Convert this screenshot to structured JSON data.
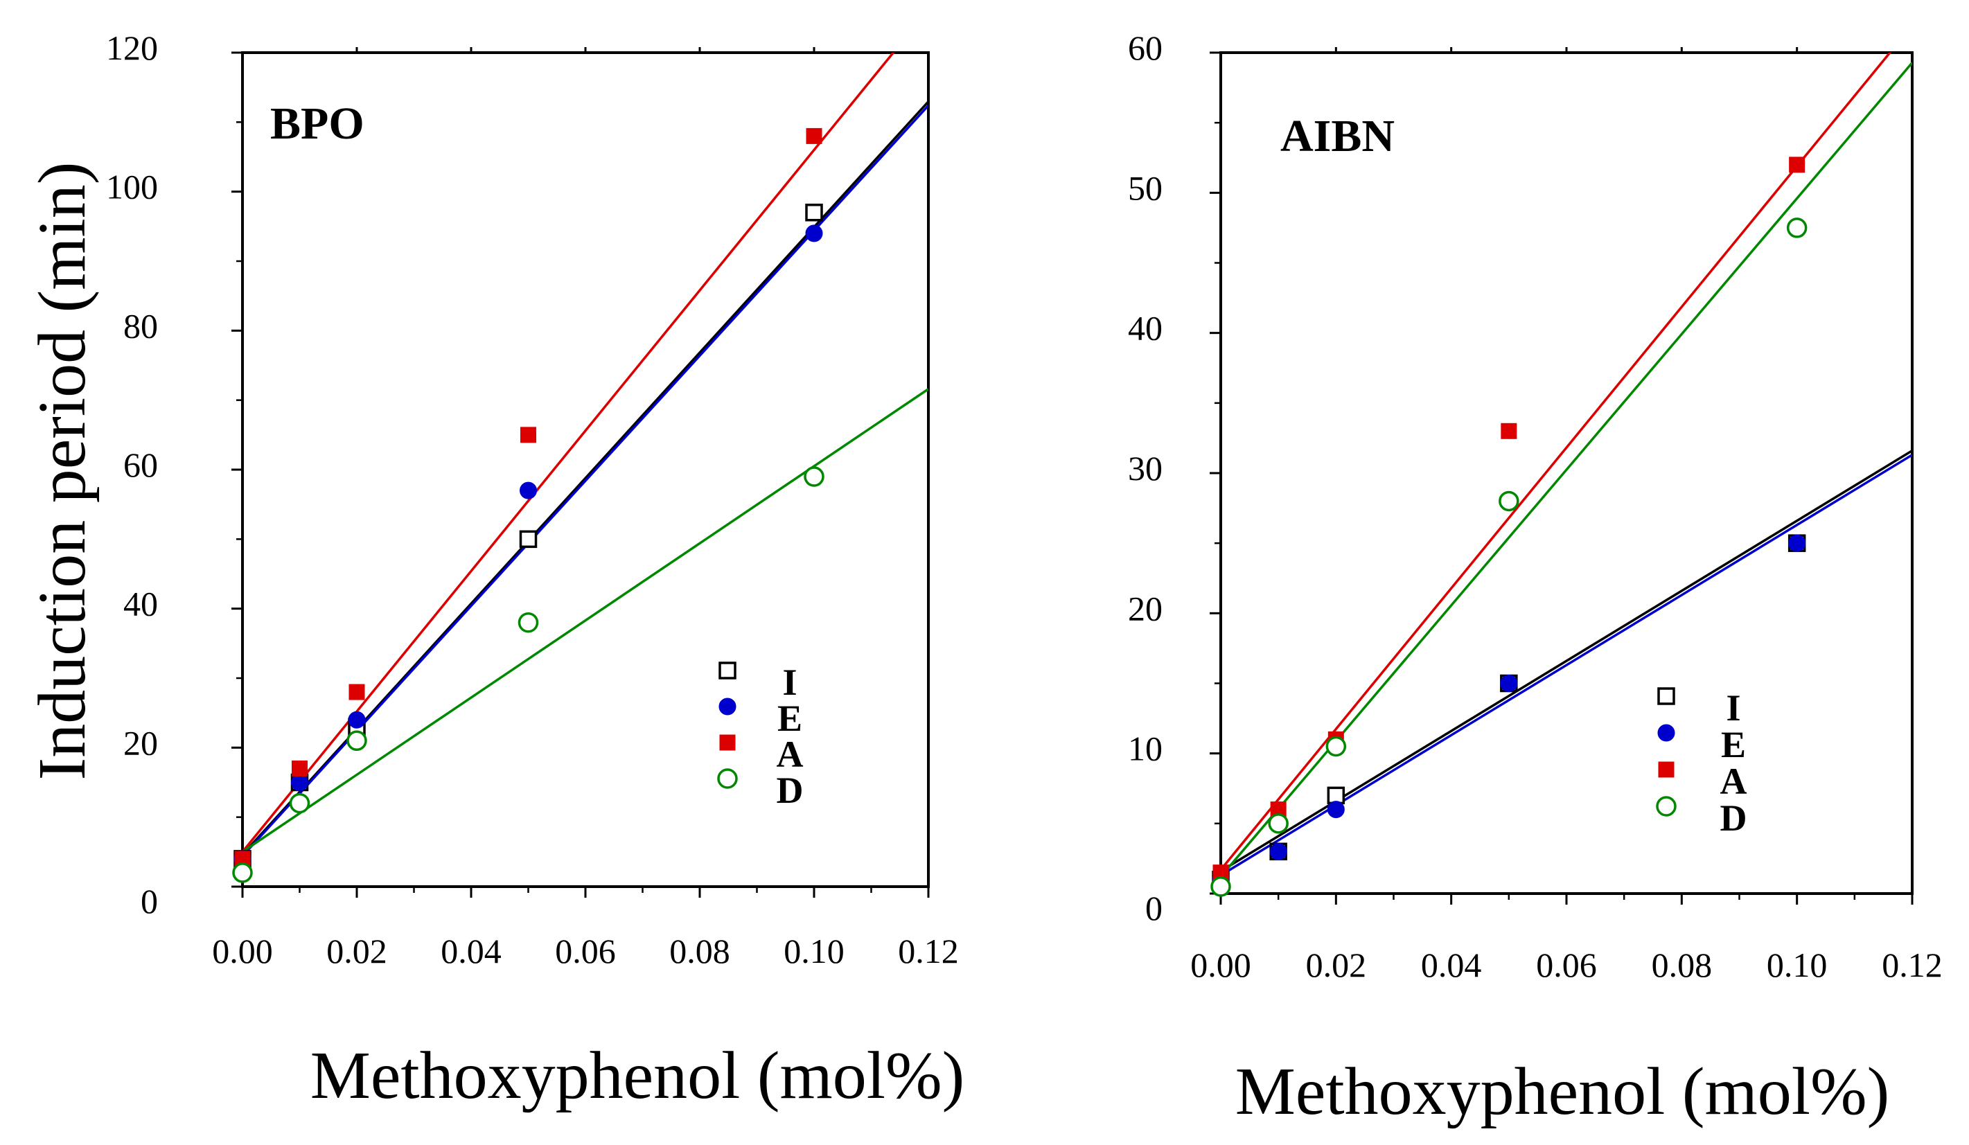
{
  "chart_data": [
    {
      "type": "scatter",
      "title": "BPO",
      "xlabel": "Methoxyphenol (mol%)",
      "ylabel": "Induction period (min)",
      "xlim": [
        0,
        0.12
      ],
      "ylim": [
        0,
        120
      ],
      "xticks": [
        "0.00",
        "0.02",
        "0.04",
        "0.06",
        "0.08",
        "0.10",
        "0.12"
      ],
      "yticks": [
        "0",
        "20",
        "40",
        "60",
        "80",
        "100",
        "120"
      ],
      "series": [
        {
          "name": "I",
          "color": "#000000",
          "marker": "open-square",
          "x": [
            0,
            0.01,
            0.02,
            0.05,
            0.1
          ],
          "y": [
            4,
            15,
            23,
            50,
            97
          ],
          "fit": {
            "slope": 903,
            "intercept": 4.6
          }
        },
        {
          "name": "E",
          "color": "#0000cc",
          "marker": "filled-circle",
          "x": [
            0,
            0.01,
            0.02,
            0.05,
            0.1
          ],
          "y": [
            4,
            15,
            24,
            57,
            94
          ],
          "fit": {
            "slope": 900,
            "intercept": 4.4
          }
        },
        {
          "name": "A",
          "color": "#dd0000",
          "marker": "filled-square",
          "x": [
            0,
            0.01,
            0.02,
            0.05,
            0.1
          ],
          "y": [
            4,
            17,
            28,
            65,
            108
          ],
          "fit": {
            "slope": 1010,
            "intercept": 5.0
          }
        },
        {
          "name": "D",
          "color": "#008800",
          "marker": "open-circle",
          "x": [
            0,
            0.01,
            0.02,
            0.05,
            0.1
          ],
          "y": [
            2,
            12,
            21,
            38,
            59
          ],
          "fit": {
            "slope": 555,
            "intercept": 5.0
          }
        }
      ],
      "legend": {
        "position": "lower-right",
        "entries": [
          "I",
          "E",
          "A",
          "D"
        ]
      }
    },
    {
      "type": "scatter",
      "title": "AIBN",
      "xlabel": "Methoxyphenol (mol%)",
      "ylabel": "",
      "xlim": [
        0,
        0.12
      ],
      "ylim": [
        0,
        60
      ],
      "xticks": [
        "0.00",
        "0.02",
        "0.04",
        "0.06",
        "0.08",
        "0.10",
        "0.12"
      ],
      "yticks": [
        "0",
        "10",
        "20",
        "30",
        "40",
        "50",
        "60"
      ],
      "series": [
        {
          "name": "I",
          "color": "#000000",
          "marker": "open-square",
          "x": [
            0,
            0.01,
            0.02,
            0.05,
            0.1
          ],
          "y": [
            1,
            3,
            7,
            15,
            25
          ],
          "fit": {
            "slope": 250,
            "intercept": 1.6
          }
        },
        {
          "name": "E",
          "color": "#0000cc",
          "marker": "filled-circle",
          "x": [
            0,
            0.01,
            0.02,
            0.05,
            0.1
          ],
          "y": [
            1,
            3,
            6,
            15,
            25
          ],
          "fit": {
            "slope": 250,
            "intercept": 1.3
          }
        },
        {
          "name": "A",
          "color": "#dd0000",
          "marker": "filled-square",
          "x": [
            0,
            0.01,
            0.02,
            0.05,
            0.1
          ],
          "y": [
            1.5,
            6,
            11,
            33,
            52
          ],
          "fit": {
            "slope": 502,
            "intercept": 1.7
          }
        },
        {
          "name": "D",
          "color": "#008800",
          "marker": "open-circle",
          "x": [
            0,
            0.01,
            0.02,
            0.05,
            0.1
          ],
          "y": [
            0.5,
            5,
            10.5,
            28,
            47.5
          ],
          "fit": {
            "slope": 484,
            "intercept": 1.2
          }
        }
      ],
      "legend": {
        "position": "lower-right",
        "entries": [
          "I",
          "E",
          "A",
          "D"
        ]
      }
    }
  ]
}
